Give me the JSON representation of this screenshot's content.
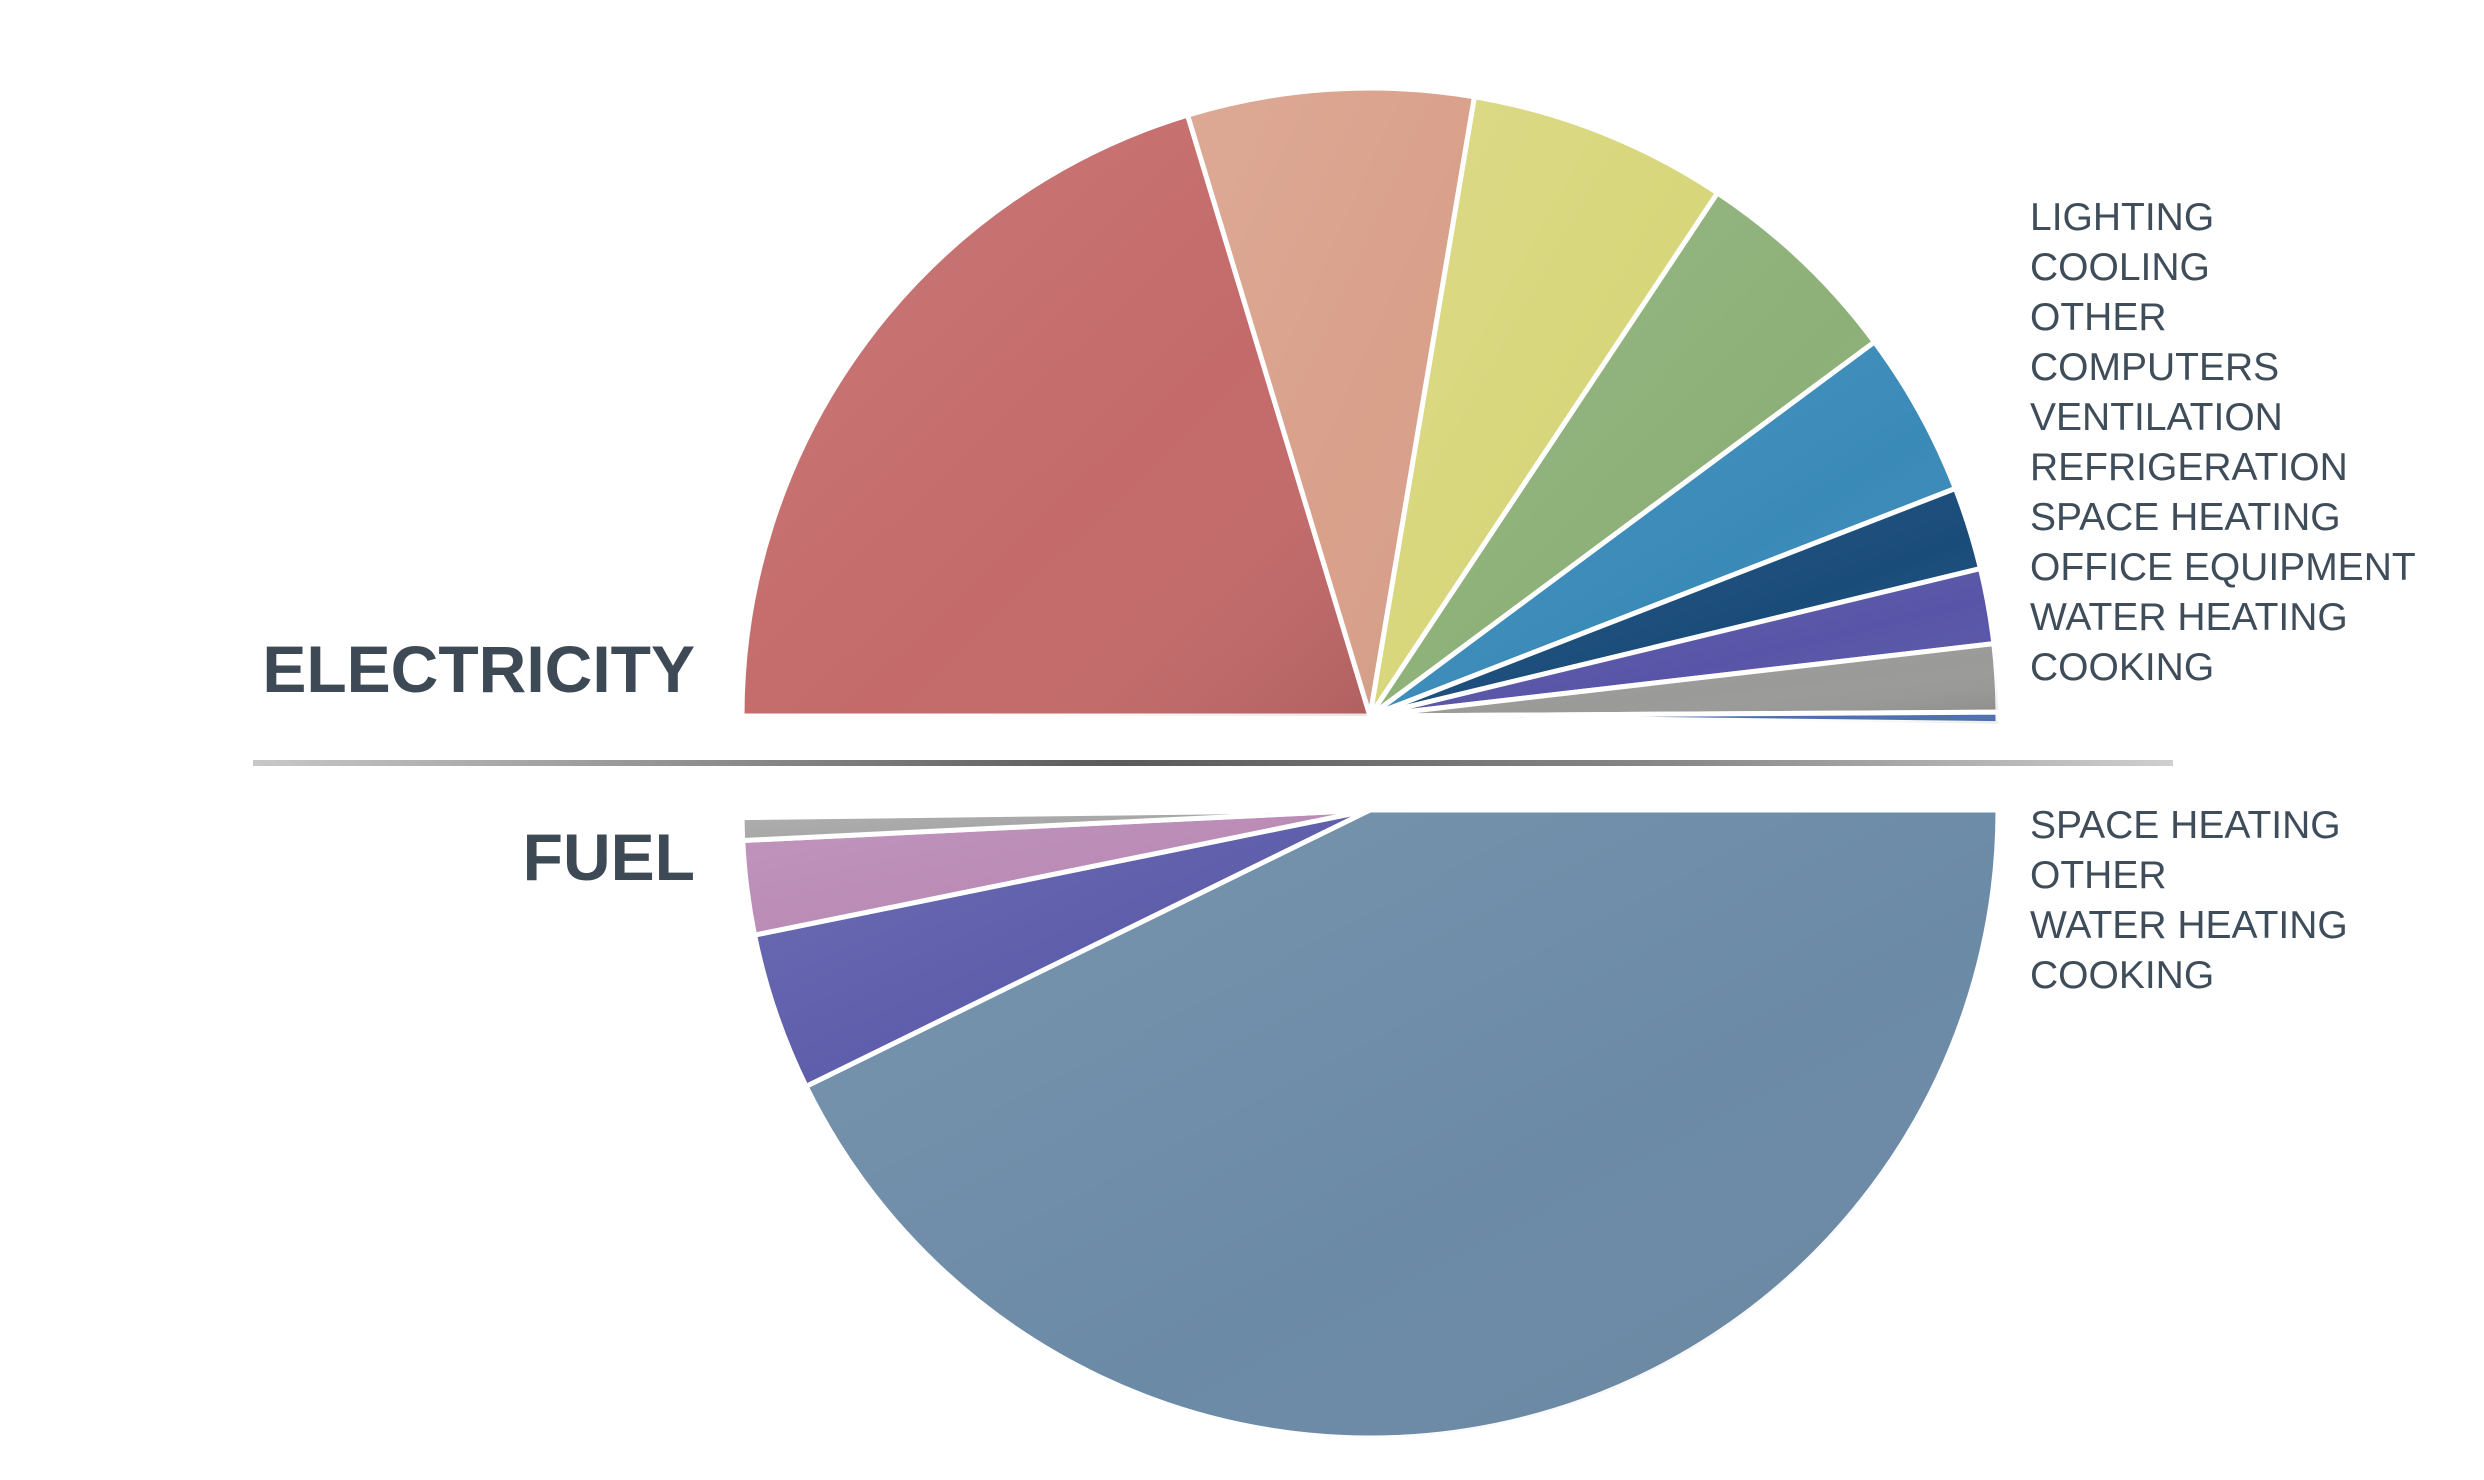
{
  "chart_data": {
    "type": "pie",
    "groups": [
      {
        "name": "ELECTRICITY",
        "slices": [
          {
            "label": "LIGHTING",
            "value": 21.0,
            "color": "#c46a6a"
          },
          {
            "label": "COOLING",
            "value": 7.6,
            "color": "#d9a08a"
          },
          {
            "label": "OTHER",
            "value": 6.9,
            "color": "#d8d67a"
          },
          {
            "label": "COMPUTERS",
            "value": 5.7,
            "color": "#8db078"
          },
          {
            "label": "VENTILATION",
            "value": 4.4,
            "color": "#3a8ab8"
          },
          {
            "label": "REFRIGERATION",
            "value": 2.2,
            "color": "#1a4c7a"
          },
          {
            "label": "SPACE HEATING",
            "value": 2.0,
            "color": "#5855a8"
          },
          {
            "label": "OFFICE EQUIPMENT",
            "value": 1.8,
            "color": "#9a9a98"
          },
          {
            "label": "WATER HEATING",
            "value": 0.3,
            "color": "#4d70b0"
          },
          {
            "label": "COOKING",
            "value": 0.0,
            "color": "#7a8aa0"
          }
        ]
      },
      {
        "name": "FUEL",
        "slices": [
          {
            "label": "SPACE HEATING",
            "value": 44.2,
            "color": "#6b8aa6"
          },
          {
            "label": "OTHER",
            "value": 4.2,
            "color": "#5d5cab"
          },
          {
            "label": "WATER HEATING",
            "value": 2.5,
            "color": "#b98ab5"
          },
          {
            "label": "COOKING",
            "value": 0.6,
            "color": "#a6a6a6"
          }
        ]
      }
    ],
    "legend_position": "right"
  }
}
